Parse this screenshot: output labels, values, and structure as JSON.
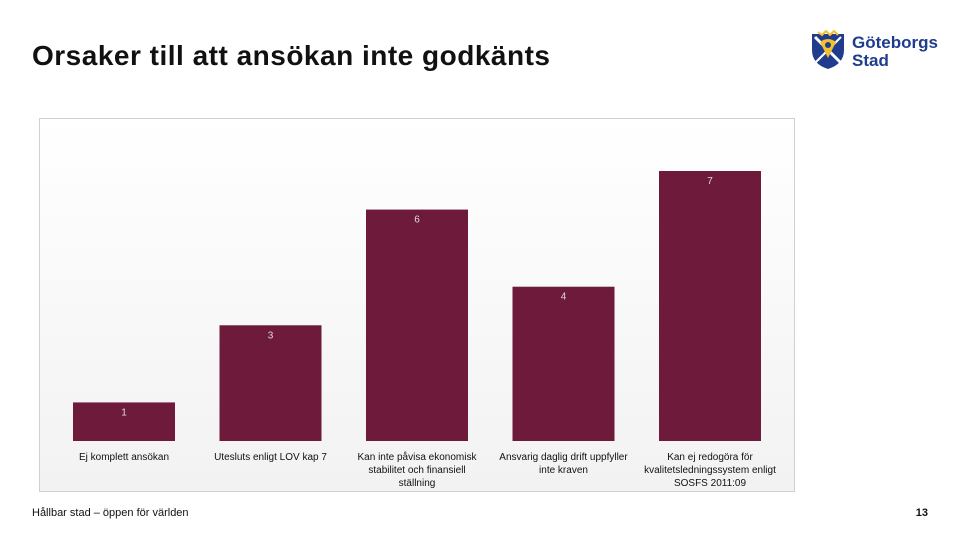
{
  "slide": {
    "title": "Orsaker till att ansökan inte godkänts",
    "footer": "Hållbar stad – öppen för världen",
    "page_number": "13"
  },
  "logo": {
    "line1": "Göteborgs",
    "line2": "Stad",
    "icon": "goteborg-coat-of-arms-icon"
  },
  "colors": {
    "bar": "#6e1a3a",
    "label": "#dddddd",
    "text": "#111111"
  },
  "chart_data": {
    "type": "bar",
    "categories": [
      [
        "Ej komplett ansökan"
      ],
      [
        "Utesluts enligt LOV kap 7"
      ],
      [
        "Kan inte påvisa ekonomisk",
        "stabilitet och finansiell",
        "ställning"
      ],
      [
        "Ansvarig daglig drift uppfyller",
        "inte kraven"
      ],
      [
        "Kan ej redogöra för",
        "kvalitetsledningssystem enligt",
        "SOSFS 2011:09"
      ]
    ],
    "values": [
      1,
      3,
      6,
      4,
      7
    ],
    "data_labels": true,
    "ylim": [
      0,
      7
    ],
    "grid": false,
    "legend": "none"
  }
}
